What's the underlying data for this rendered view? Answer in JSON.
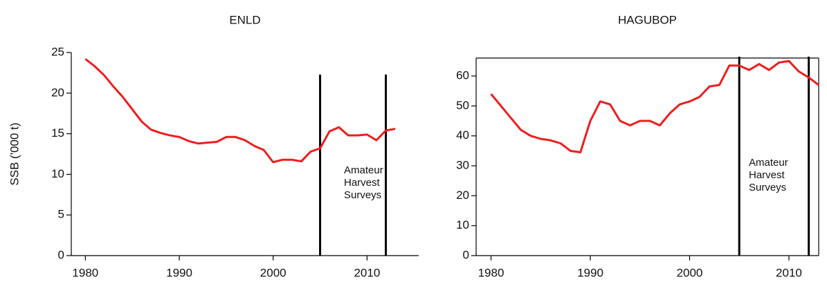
{
  "chart_data": [
    {
      "type": "line",
      "title": "ENLD",
      "y_label": "SSB ('000 t)",
      "x": [
        1980,
        1981,
        1982,
        1983,
        1984,
        1985,
        1986,
        1987,
        1988,
        1989,
        1990,
        1991,
        1992,
        1993,
        1994,
        1995,
        1996,
        1997,
        1998,
        1999,
        2000,
        2001,
        2002,
        2003,
        2004,
        2005,
        2006,
        2007,
        2008,
        2009,
        2010,
        2011,
        2012,
        2013
      ],
      "series": [
        {
          "name": "SSB",
          "color": "#ee1c1c",
          "values": [
            24.2,
            23.3,
            22.2,
            20.8,
            19.5,
            18.0,
            16.5,
            15.5,
            15.1,
            14.8,
            14.6,
            14.1,
            13.8,
            13.9,
            14.0,
            14.6,
            14.6,
            14.2,
            13.5,
            13.0,
            11.5,
            11.8,
            11.8,
            11.6,
            12.8,
            13.2,
            15.3,
            15.8,
            14.8,
            14.8,
            14.9,
            14.2,
            15.4,
            15.6
          ]
        }
      ],
      "xlim": [
        1978.5,
        2015.5
      ],
      "xticks": [
        1980,
        1990,
        2000,
        2010
      ],
      "ylim": [
        0,
        25
      ],
      "yticks": [
        0,
        5,
        10,
        15,
        20,
        25
      ],
      "vlines": [
        2005,
        2012
      ],
      "annotation": [
        "Amateur",
        "Harvest",
        "Surveys"
      ],
      "frame": false
    },
    {
      "type": "line",
      "title": "HAGUBOP",
      "x": [
        1980,
        1981,
        1982,
        1983,
        1984,
        1985,
        1986,
        1987,
        1988,
        1989,
        1990,
        1991,
        1992,
        1993,
        1994,
        1995,
        1996,
        1997,
        1998,
        1999,
        2000,
        2001,
        2002,
        2003,
        2004,
        2005,
        2006,
        2007,
        2008,
        2009,
        2010,
        2011,
        2012,
        2013
      ],
      "series": [
        {
          "name": "SSB",
          "color": "#ee1c1c",
          "values": [
            54,
            50,
            46,
            42,
            40,
            39,
            38.5,
            37.5,
            35,
            34.5,
            45,
            51.5,
            50.5,
            45,
            43.5,
            45,
            45,
            43.5,
            47.5,
            50.5,
            51.5,
            53,
            56.5,
            57,
            63.5,
            63.5,
            62,
            64,
            62,
            64.5,
            65,
            61.5,
            59.5,
            57
          ]
        }
      ],
      "xlim": [
        1978.5,
        2013
      ],
      "xticks": [
        1980,
        1990,
        2000,
        2010
      ],
      "ylim": [
        0,
        66
      ],
      "yticks": [
        0,
        10,
        20,
        30,
        40,
        50,
        60
      ],
      "vlines": [
        2005,
        2012
      ],
      "annotation": [
        "Amateur",
        "Harvest",
        "Surveys"
      ],
      "frame": true
    }
  ]
}
